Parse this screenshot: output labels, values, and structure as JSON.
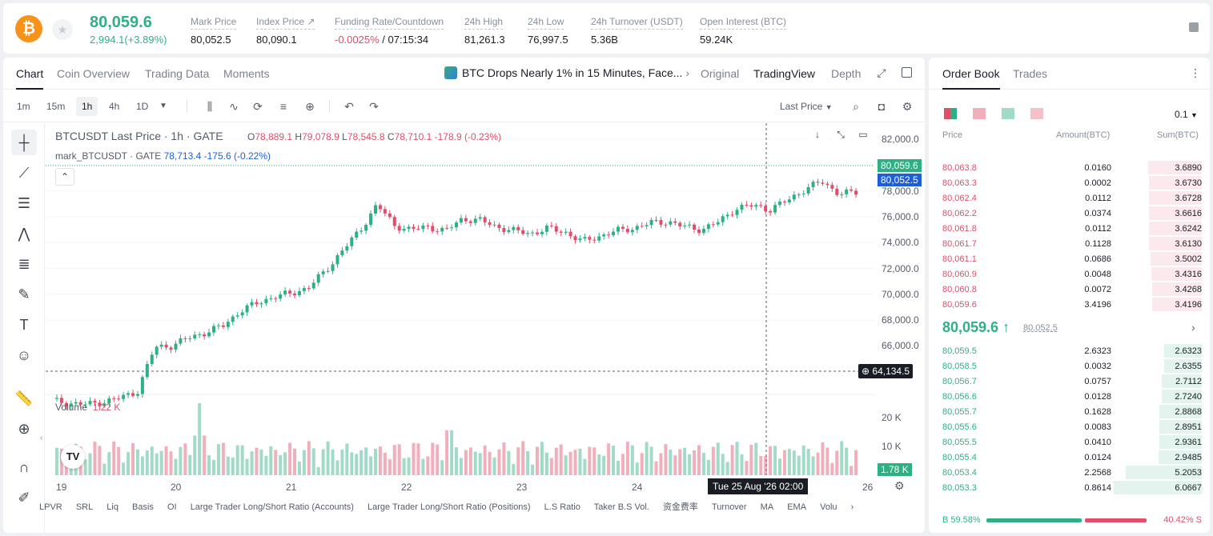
{
  "header": {
    "price": "80,059.6",
    "change": "2,994.1(+3.89%)",
    "stats": [
      {
        "label": "Mark Price",
        "value": "80,052.5"
      },
      {
        "label": "Index Price ↗",
        "value": "80,090.1"
      },
      {
        "label": "Funding Rate/Countdown",
        "value_neg": "-0.0025%",
        "value": " / 07:15:34"
      },
      {
        "label": "24h High",
        "value": "81,261.3"
      },
      {
        "label": "24h Low",
        "value": "76,997.5"
      },
      {
        "label": "24h Turnover (USDT)",
        "value": "5.36B"
      },
      {
        "label": "Open Interest (BTC)",
        "value": "59.24K"
      }
    ]
  },
  "chart_tabs": [
    "Chart",
    "Coin Overview",
    "Trading Data",
    "Moments"
  ],
  "news_headline": "BTC Drops Nearly 1% in 15 Minutes, Face...",
  "view_tabs": [
    "Original",
    "TradingView",
    "Depth"
  ],
  "timeframes": [
    "1m",
    "15m",
    "1h",
    "4h",
    "1D"
  ],
  "price_type": "Last Price",
  "legend": {
    "symbol": "BTCUSDT Last Price · 1h · GATE",
    "o_label": "O",
    "o": "78,889.1",
    "h_label": "H",
    "h": "79,078.9",
    "l_label": "L",
    "l": "78,545.8",
    "c_label": "C",
    "c": "78,710.1",
    "chg": "-178.9 (-0.23%)",
    "mark_label": "mark_BTCUSDT · GATE",
    "mark_value": "78,713.4 -175.6 (-0.22%)",
    "volume_label": "Volume",
    "volume_value": "1.22 K"
  },
  "axis_labels": [
    "82,000.0",
    "78,000.0",
    "76,000.0",
    "74,000.0",
    "72,000.0",
    "70,000.0",
    "68,000.0",
    "66,000.0"
  ],
  "price_tags": {
    "last": "80,059.6",
    "mark": "80,052.5",
    "cursor": "64,134.5"
  },
  "volume_axis": [
    "20 K",
    "10 K"
  ],
  "volume_tag": "1.78 K",
  "date_labels": [
    "19",
    "20",
    "21",
    "22",
    "23",
    "24",
    "26"
  ],
  "crosshair_date": "Tue 25 Aug '26   02:00",
  "indicators": [
    "LPVR",
    "SRL",
    "Liq",
    "Basis",
    "OI",
    "Large Trader Long/Short Ratio (Accounts)",
    "Large Trader Long/Short Ratio (Positions)",
    "L.S Ratio",
    "Taker B.S Vol.",
    "资金费率",
    "Turnover",
    "MA",
    "EMA",
    "Volu"
  ],
  "colors": {
    "up": "#2fb083",
    "down": "#e04e6a",
    "accent": "#f7931a",
    "mark": "#1e5fd8"
  },
  "chart_data": {
    "type": "candlestick",
    "interval": "1h",
    "x": [
      "19",
      "20",
      "21",
      "22",
      "23",
      "24",
      "26"
    ],
    "close_path": [
      64500,
      64300,
      64200,
      64400,
      64700,
      65200,
      68500,
      68600,
      69200,
      69600,
      70100,
      71200,
      71800,
      72300,
      72500,
      73000,
      74200,
      75800,
      77200,
      79200,
      77600,
      77300,
      77500,
      77200,
      78100,
      78000,
      77500,
      77200,
      77000,
      77400,
      77100,
      76400,
      76800,
      77200,
      77400,
      77800,
      77900,
      77500,
      77300,
      77900,
      78900,
      79100,
      78800,
      79500,
      80300,
      80900,
      80000,
      80059.6
    ],
    "volume_peak": 20000,
    "ylim": [
      64000,
      83000
    ]
  },
  "orderbook": {
    "tabs": [
      "Order Book",
      "Trades"
    ],
    "precision": "0.1",
    "headers": [
      "Price",
      "Amount(BTC)",
      "Sum(BTC)"
    ],
    "asks": [
      {
        "price": "80,063.8",
        "amount": "0.0160",
        "sum": "3.6890",
        "depth": 0.61
      },
      {
        "price": "80,063.3",
        "amount": "0.0002",
        "sum": "3.6730",
        "depth": 0.6
      },
      {
        "price": "80,062.4",
        "amount": "0.0112",
        "sum": "3.6728",
        "depth": 0.6
      },
      {
        "price": "80,062.2",
        "amount": "0.0374",
        "sum": "3.6616",
        "depth": 0.6
      },
      {
        "price": "80,061.8",
        "amount": "0.0112",
        "sum": "3.6242",
        "depth": 0.6
      },
      {
        "price": "80,061.7",
        "amount": "0.1128",
        "sum": "3.6130",
        "depth": 0.6
      },
      {
        "price": "80,061.1",
        "amount": "0.0686",
        "sum": "3.5002",
        "depth": 0.58
      },
      {
        "price": "80,060.9",
        "amount": "0.0048",
        "sum": "3.4316",
        "depth": 0.57
      },
      {
        "price": "80,060.8",
        "amount": "0.0072",
        "sum": "3.4268",
        "depth": 0.56
      },
      {
        "price": "80,059.6",
        "amount": "3.4196",
        "sum": "3.4196",
        "depth": 0.56
      }
    ],
    "mid_price": "80,059.6 ↑",
    "mid_mark": "80,052.5",
    "bids": [
      {
        "price": "80,059.5",
        "amount": "2.6323",
        "sum": "2.6323",
        "depth": 0.43
      },
      {
        "price": "80,058.5",
        "amount": "0.0032",
        "sum": "2.6355",
        "depth": 0.43
      },
      {
        "price": "80,056.7",
        "amount": "0.0757",
        "sum": "2.7112",
        "depth": 0.45
      },
      {
        "price": "80,056.6",
        "amount": "0.0128",
        "sum": "2.7240",
        "depth": 0.45
      },
      {
        "price": "80,055.7",
        "amount": "0.1628",
        "sum": "2.8868",
        "depth": 0.48
      },
      {
        "price": "80,055.6",
        "amount": "0.0083",
        "sum": "2.8951",
        "depth": 0.48
      },
      {
        "price": "80,055.5",
        "amount": "0.0410",
        "sum": "2.9361",
        "depth": 0.48
      },
      {
        "price": "80,055.4",
        "amount": "0.0124",
        "sum": "2.9485",
        "depth": 0.49
      },
      {
        "price": "80,053.4",
        "amount": "2.2568",
        "sum": "5.2053",
        "depth": 0.86
      },
      {
        "price": "80,053.3",
        "amount": "0.8614",
        "sum": "6.0667",
        "depth": 1.0
      }
    ],
    "buy_ratio": "B 59.58%",
    "sell_ratio": "40.42% S",
    "buy_fraction": 0.5958
  }
}
